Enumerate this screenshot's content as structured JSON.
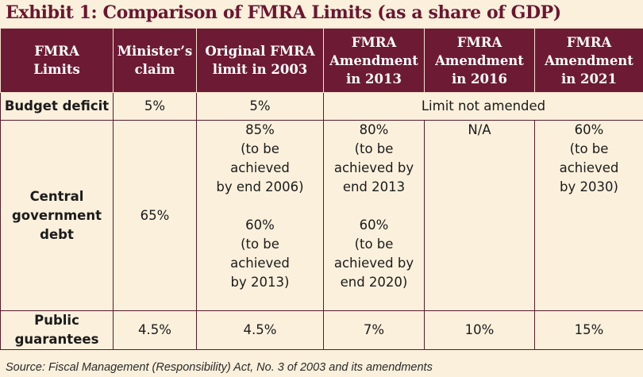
{
  "title": "Exhibit 1: Comparison of FMRA Limits (as a share of GDP)",
  "headers": [
    [
      "FMRA",
      "Limits"
    ],
    [
      "Minister’s",
      "claim"
    ],
    [
      "Original FMRA",
      "limit in 2003"
    ],
    [
      "FMRA",
      "Amendment",
      "in 2013"
    ],
    [
      "FMRA",
      "Amendment",
      "in 2016"
    ],
    [
      "FMRA",
      "Amendment",
      "in 2021"
    ]
  ],
  "rows": {
    "budget_deficit": {
      "label": "Budget deficit",
      "minister": "5%",
      "original_2003": "5%",
      "merged_amendments": "Limit not amended"
    },
    "central_debt": {
      "label": [
        "Central",
        "government",
        "debt"
      ],
      "minister": "65%",
      "original_2003": [
        [
          "85%",
          "(to be",
          "achieved",
          "by end 2006)"
        ],
        [
          "60%",
          "(to be",
          "achieved",
          "by 2013)"
        ]
      ],
      "amend_2013": [
        [
          "80%",
          "(to be",
          "achieved by",
          "end 2013"
        ],
        [
          "60%",
          "(to be",
          "achieved by",
          "end 2020)"
        ]
      ],
      "amend_2016": "N/A",
      "amend_2021": [
        "60%",
        "(to be",
        "achieved",
        "by 2030)"
      ]
    },
    "public_guarantees": {
      "label": [
        "Public",
        "guarantees"
      ],
      "minister": "4.5%",
      "original_2003": "4.5%",
      "amend_2013": "7%",
      "amend_2016": "10%",
      "amend_2021": "15%"
    }
  },
  "source": "Source: Fiscal Management (Responsibility) Act, No. 3 of 2003 and its amendments"
}
